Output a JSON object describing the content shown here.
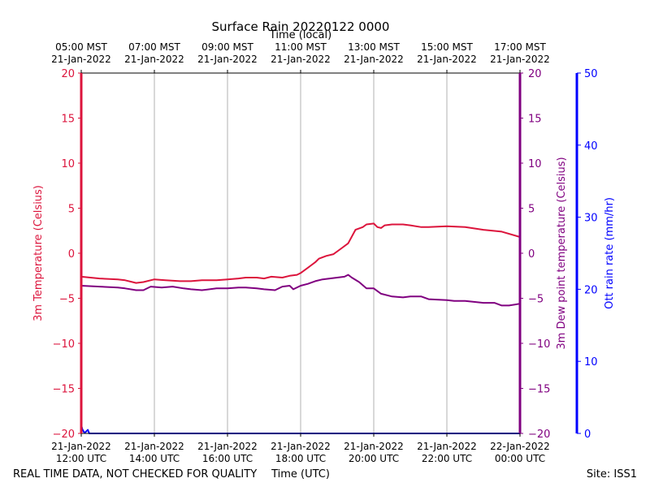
{
  "chart_data": {
    "type": "line",
    "title": "Surface Rain 20220122 0000",
    "top_axis_label": "Time (local)",
    "xlabel": "Time (UTC)",
    "ylabel_left": "3m Temperature (Celsius)",
    "ylabel_right_inner": "3m Dew point temperature (Celsius)",
    "ylabel_right_outer": "Ott rain rate (mm/hr)",
    "footer_left": "REAL TIME DATA, NOT CHECKED FOR QUALITY",
    "footer_right": "Site: ISS1",
    "xlim_hours_utc": [
      12,
      24
    ],
    "ylim_left": [
      -20,
      20
    ],
    "ylim_right_inner": [
      -20,
      20
    ],
    "ylim_right_outer": [
      0,
      50
    ],
    "yticks_left": [
      20,
      15,
      10,
      5,
      0,
      -5,
      -10,
      -15,
      -20
    ],
    "yticks_right_inner": [
      20,
      15,
      10,
      5,
      0,
      -5,
      -10,
      -15,
      -20
    ],
    "yticks_right_outer": [
      50,
      40,
      30,
      20,
      10,
      0
    ],
    "bottom_ticks": [
      {
        "x": 12,
        "label1": "21-Jan-2022",
        "label2": "12:00 UTC"
      },
      {
        "x": 14,
        "label1": "21-Jan-2022",
        "label2": "14:00 UTC"
      },
      {
        "x": 16,
        "label1": "21-Jan-2022",
        "label2": "16:00 UTC"
      },
      {
        "x": 18,
        "label1": "21-Jan-2022",
        "label2": "18:00 UTC"
      },
      {
        "x": 20,
        "label1": "21-Jan-2022",
        "label2": "20:00 UTC"
      },
      {
        "x": 22,
        "label1": "21-Jan-2022",
        "label2": "22:00 UTC"
      },
      {
        "x": 24,
        "label1": "22-Jan-2022",
        "label2": "00:00 UTC"
      }
    ],
    "top_ticks": [
      {
        "x": 12,
        "label1": "05:00 MST",
        "label2": "21-Jan-2022"
      },
      {
        "x": 14,
        "label1": "07:00 MST",
        "label2": "21-Jan-2022"
      },
      {
        "x": 16,
        "label1": "09:00 MST",
        "label2": "21-Jan-2022"
      },
      {
        "x": 18,
        "label1": "11:00 MST",
        "label2": "21-Jan-2022"
      },
      {
        "x": 20,
        "label1": "13:00 MST",
        "label2": "21-Jan-2022"
      },
      {
        "x": 22,
        "label1": "15:00 MST",
        "label2": "21-Jan-2022"
      },
      {
        "x": 24,
        "label1": "17:00 MST",
        "label2": "21-Jan-2022"
      }
    ],
    "grid": "vertical",
    "colors": {
      "temperature": "#dc143c",
      "dewpoint": "#800080",
      "rain": "#0000ff",
      "grid": "#b0b0b0"
    },
    "series": [
      {
        "axis": "left",
        "color": "#dc143c",
        "x": [
          12.0,
          12.5,
          13.0,
          13.2,
          13.4,
          13.5,
          13.7,
          14.0,
          14.3,
          14.7,
          15.0,
          15.3,
          15.7,
          16.0,
          16.3,
          16.5,
          16.8,
          17.0,
          17.2,
          17.5,
          17.7,
          17.9,
          18.0,
          18.2,
          18.4,
          18.5,
          18.7,
          18.9,
          19.1,
          19.3,
          19.5,
          19.7,
          19.8,
          20.0,
          20.1,
          20.2,
          20.3,
          20.5,
          20.8,
          21.0,
          21.3,
          21.5,
          22.0,
          22.5,
          23.0,
          23.5,
          24.0
        ],
        "y": [
          -2.6,
          -2.8,
          -2.9,
          -3.0,
          -3.2,
          -3.3,
          -3.2,
          -2.9,
          -3.0,
          -3.1,
          -3.1,
          -3.0,
          -3.0,
          -2.9,
          -2.8,
          -2.7,
          -2.7,
          -2.8,
          -2.6,
          -2.7,
          -2.5,
          -2.4,
          -2.2,
          -1.6,
          -1.0,
          -0.6,
          -0.3,
          -0.1,
          0.5,
          1.1,
          2.6,
          2.9,
          3.2,
          3.3,
          2.9,
          2.8,
          3.1,
          3.2,
          3.2,
          3.1,
          2.9,
          2.9,
          3.0,
          2.9,
          2.6,
          2.4,
          1.8
        ]
      },
      {
        "axis": "right_inner",
        "color": "#800080",
        "x": [
          12.0,
          12.5,
          13.0,
          13.2,
          13.5,
          13.7,
          13.9,
          14.2,
          14.5,
          14.8,
          15.0,
          15.3,
          15.7,
          16.0,
          16.3,
          16.5,
          16.8,
          17.0,
          17.3,
          17.5,
          17.7,
          17.8,
          18.0,
          18.2,
          18.4,
          18.6,
          19.0,
          19.2,
          19.3,
          19.4,
          19.6,
          19.8,
          20.0,
          20.2,
          20.5,
          20.8,
          21.0,
          21.3,
          21.5,
          22.0,
          22.2,
          22.5,
          23.0,
          23.3,
          23.5,
          23.7,
          24.0
        ],
        "y": [
          -3.6,
          -3.7,
          -3.8,
          -3.9,
          -4.1,
          -4.1,
          -3.7,
          -3.8,
          -3.7,
          -3.9,
          -4.0,
          -4.1,
          -3.9,
          -3.9,
          -3.8,
          -3.8,
          -3.9,
          -4.0,
          -4.1,
          -3.7,
          -3.6,
          -4.0,
          -3.6,
          -3.4,
          -3.1,
          -2.9,
          -2.7,
          -2.6,
          -2.4,
          -2.7,
          -3.2,
          -3.9,
          -3.9,
          -4.5,
          -4.8,
          -4.9,
          -4.8,
          -4.8,
          -5.1,
          -5.2,
          -5.3,
          -5.3,
          -5.5,
          -5.5,
          -5.8,
          -5.8,
          -5.6
        ]
      },
      {
        "axis": "right_outer",
        "color": "#0000ff",
        "x": [
          12.0,
          12.03,
          12.07,
          12.1,
          12.14,
          12.18,
          12.22,
          12.3,
          13.0,
          14.0,
          16.0,
          18.0,
          20.0,
          22.0,
          24.0
        ],
        "y": [
          1.2,
          0.6,
          0.2,
          0.1,
          0.3,
          0.5,
          0.0,
          0.0,
          0.0,
          0.0,
          0.0,
          0.0,
          0.0,
          0.0,
          0.0
        ]
      }
    ]
  }
}
